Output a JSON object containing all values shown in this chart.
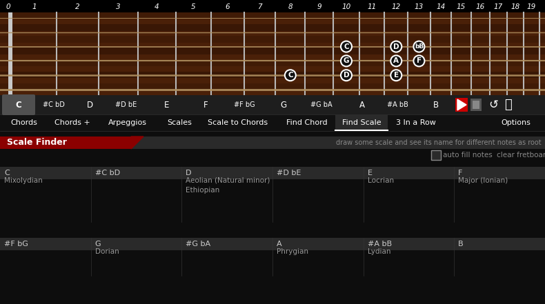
{
  "bg_color": "#000000",
  "fretboard_bg": "#4a2008",
  "fretboard_dark_stripe": "#2a1005",
  "fret_color": "#b0b0b0",
  "string_color": "#b09060",
  "nut_color": "#d8d8d8",
  "fret_numbers": [
    "0",
    "1",
    "2",
    "3",
    "4",
    "5",
    "6",
    "7",
    "8",
    "9",
    "10",
    "11",
    "12",
    "13",
    "14",
    "15",
    "16",
    "17",
    "18",
    "19"
  ],
  "note_positions_fretboard": [
    {
      "fret": 8,
      "string": 4,
      "label": "C"
    },
    {
      "fret": 10,
      "string": 2,
      "label": "C"
    },
    {
      "fret": 10,
      "string": 3,
      "label": "G"
    },
    {
      "fret": 10,
      "string": 4,
      "label": "D"
    },
    {
      "fret": 12,
      "string": 2,
      "label": "D"
    },
    {
      "fret": 12,
      "string": 3,
      "label": "A"
    },
    {
      "fret": 12,
      "string": 4,
      "label": "E"
    },
    {
      "fret": 13,
      "string": 2,
      "label": "bB"
    },
    {
      "fret": 13,
      "string": 3,
      "label": "F"
    }
  ],
  "chromatic_notes": [
    "C",
    "#C bD",
    "D",
    "#D bE",
    "E",
    "F",
    "#F bG",
    "G",
    "#G bA",
    "A",
    "#A bB",
    "B"
  ],
  "active_note_idx": 0,
  "nav_tabs": [
    "Chords",
    "Chords +",
    "Arpeggios",
    "Scales",
    "Scale to Chords",
    "Find Chord",
    "Find Scale",
    "3 In a Row"
  ],
  "active_tab": "Find Scale",
  "options_label": "Options",
  "scale_finder_label": "Scale Finder",
  "scale_finder_red": "#8b0000",
  "hint_text": "draw some scale and see its name for different notes as root",
  "auto_fill_text": "auto fill notes",
  "clear_text": "clear fretboard",
  "top_row_keys": [
    "C",
    "#C bD",
    "D",
    "#D bE",
    "E",
    "F"
  ],
  "top_row_scales": [
    [
      "Mixolydian"
    ],
    [],
    [
      "Aeolian (Natural minor)",
      "Ethiopian"
    ],
    [],
    [
      "Locrian"
    ],
    [
      "Major (Ionian)"
    ]
  ],
  "bottom_row_keys": [
    "#F bG",
    "G",
    "#G bA",
    "A",
    "#A bB",
    "B"
  ],
  "bottom_row_scales": [
    [],
    [
      "Dorian"
    ],
    [],
    [
      "Phrygian"
    ],
    [
      "Lydian"
    ],
    []
  ]
}
